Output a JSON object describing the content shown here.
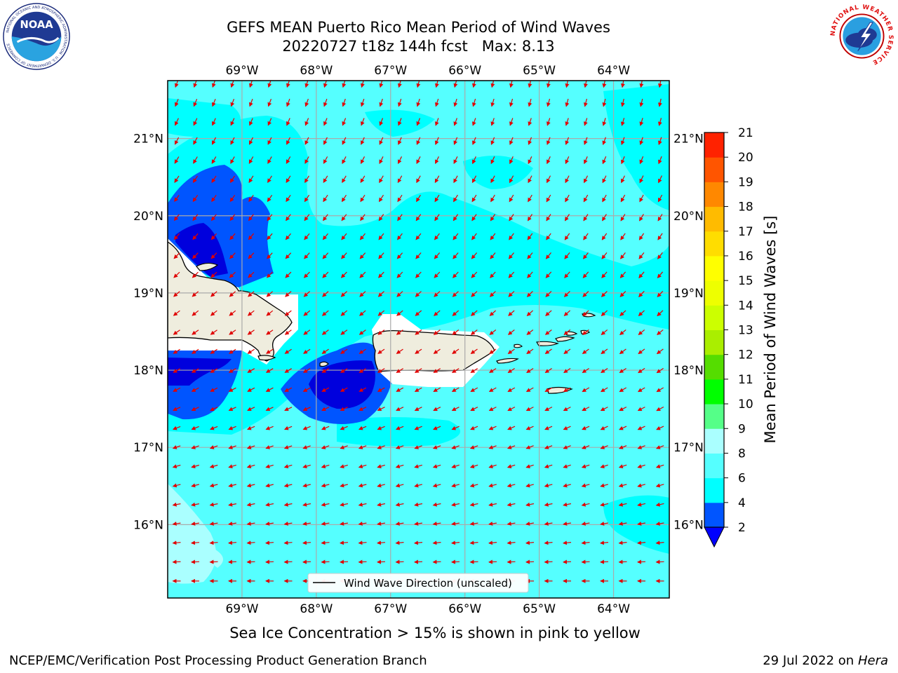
{
  "title": {
    "line1": "GEFS MEAN Puerto Rico Mean Period of Wind Waves",
    "line2": "20220727 t18z 144h fcst   Max: 8.13"
  },
  "logos": {
    "left": {
      "icon": "noaa-logo-icon",
      "text": "NOAA",
      "ring_text": "NATIONAL OCEANIC AND ATMOSPHERIC ADMINISTRATION · U.S. DEPARTMENT OF COMMERCE"
    },
    "right": {
      "icon": "nws-logo-icon",
      "ring_text": "NATIONAL WEATHER SERVICE"
    }
  },
  "map": {
    "lon_ticks": [
      "69°W",
      "68°W",
      "67°W",
      "66°W",
      "65°W",
      "64°W"
    ],
    "lat_ticks": [
      "21°N",
      "20°N",
      "19°N",
      "18°N",
      "17°N",
      "16°N"
    ],
    "lon_values": [
      -69,
      -68,
      -67,
      -66,
      -65,
      -64
    ],
    "lat_values": [
      21,
      20,
      19,
      18,
      17,
      16
    ],
    "extent": {
      "lon_min": -70,
      "lon_max": -63.25,
      "lat_min": 15.05,
      "lat_max": 21.75
    },
    "legend_label": "Wind Wave Direction (unscaled)",
    "land_color": "#efedde",
    "arrow_color": "#e00000"
  },
  "colorbar": {
    "label": "Mean Period of Wind Waves [s]",
    "ticks": [
      "2",
      "4",
      "6",
      "8",
      "9",
      "10",
      "11",
      "12",
      "13",
      "14",
      "15",
      "16",
      "17",
      "18",
      "19",
      "20",
      "21"
    ],
    "colors": [
      "#0055ff",
      "#00ffff",
      "#55ffff",
      "#aaffff",
      "#55ff88",
      "#00ff00",
      "#55dd00",
      "#aaee00",
      "#ccff00",
      "#eeff00",
      "#ffff00",
      "#ffdd00",
      "#ffbb00",
      "#ff8800",
      "#ff5500",
      "#ff2200"
    ],
    "under_color": "#0000ff"
  },
  "ice_note": "Sea Ice Concentration > 15% is shown in pink to yellow",
  "footer": {
    "left": "NCEP/EMC/Verification Post Processing Product Generation Branch",
    "right_date": "29 Jul 2022 on ",
    "right_host": "Hera"
  }
}
